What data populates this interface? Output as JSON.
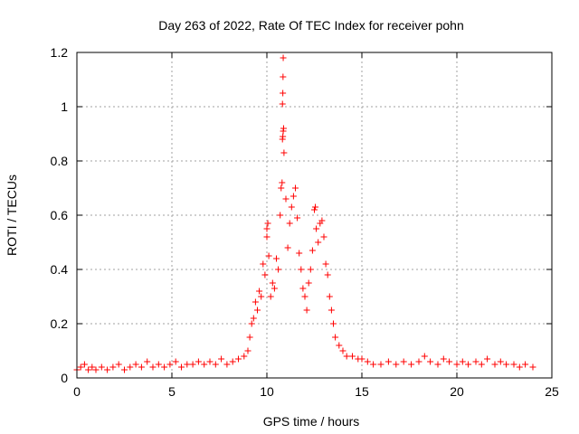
{
  "chart_data": {
    "type": "scatter",
    "title": "Day 263 of 2022, Rate Of TEC Index for receiver pohn",
    "xlabel": "GPS time / hours",
    "ylabel": "ROTI / TECUs",
    "xlim": [
      0,
      25
    ],
    "ylim": [
      0,
      1.2
    ],
    "xticks": [
      0,
      5,
      10,
      15,
      20,
      25
    ],
    "xtick_labels": [
      "0",
      "5",
      "10",
      "15",
      "20",
      "25"
    ],
    "yticks": [
      0,
      0.2,
      0.4,
      0.6,
      0.8,
      1.0,
      1.2
    ],
    "ytick_labels": [
      "0",
      "0.2",
      "0.4",
      "0.6",
      "0.8",
      "1",
      "1.2"
    ],
    "grid": true,
    "marker": "+",
    "colors": {
      "series": "#ff0000",
      "grid": "#a0a0a0",
      "axes": "#000000"
    },
    "series": [
      {
        "name": "ROTI",
        "points": [
          [
            0.0,
            0.03
          ],
          [
            0.2,
            0.04
          ],
          [
            0.4,
            0.05
          ],
          [
            0.6,
            0.03
          ],
          [
            0.8,
            0.04
          ],
          [
            1.0,
            0.03
          ],
          [
            1.3,
            0.04
          ],
          [
            1.6,
            0.03
          ],
          [
            1.9,
            0.04
          ],
          [
            2.2,
            0.05
          ],
          [
            2.5,
            0.03
          ],
          [
            2.8,
            0.04
          ],
          [
            3.1,
            0.05
          ],
          [
            3.4,
            0.04
          ],
          [
            3.7,
            0.06
          ],
          [
            4.0,
            0.04
          ],
          [
            4.3,
            0.05
          ],
          [
            4.6,
            0.04
          ],
          [
            4.9,
            0.05
          ],
          [
            5.2,
            0.06
          ],
          [
            5.5,
            0.04
          ],
          [
            5.8,
            0.05
          ],
          [
            6.1,
            0.05
          ],
          [
            6.4,
            0.06
          ],
          [
            6.7,
            0.05
          ],
          [
            7.0,
            0.06
          ],
          [
            7.3,
            0.05
          ],
          [
            7.6,
            0.07
          ],
          [
            7.9,
            0.05
          ],
          [
            8.2,
            0.06
          ],
          [
            8.5,
            0.07
          ],
          [
            8.8,
            0.08
          ],
          [
            9.0,
            0.1
          ],
          [
            9.1,
            0.15
          ],
          [
            9.2,
            0.2
          ],
          [
            9.3,
            0.22
          ],
          [
            9.4,
            0.28
          ],
          [
            9.5,
            0.25
          ],
          [
            9.6,
            0.32
          ],
          [
            9.7,
            0.3
          ],
          [
            9.8,
            0.42
          ],
          [
            9.9,
            0.38
          ],
          [
            10.0,
            0.55
          ],
          [
            10.0,
            0.52
          ],
          [
            10.05,
            0.57
          ],
          [
            10.1,
            0.45
          ],
          [
            10.2,
            0.3
          ],
          [
            10.3,
            0.35
          ],
          [
            10.4,
            0.33
          ],
          [
            10.5,
            0.44
          ],
          [
            10.6,
            0.4
          ],
          [
            10.7,
            0.6
          ],
          [
            10.75,
            0.7
          ],
          [
            10.8,
            0.72
          ],
          [
            10.82,
            0.88
          ],
          [
            10.84,
            0.89
          ],
          [
            10.86,
            0.91
          ],
          [
            10.88,
            0.92
          ],
          [
            10.82,
            1.01
          ],
          [
            10.84,
            1.05
          ],
          [
            10.85,
            1.11
          ],
          [
            10.86,
            1.18
          ],
          [
            10.9,
            0.83
          ],
          [
            11.0,
            0.66
          ],
          [
            11.1,
            0.48
          ],
          [
            11.2,
            0.57
          ],
          [
            11.3,
            0.63
          ],
          [
            11.4,
            0.67
          ],
          [
            11.5,
            0.7
          ],
          [
            11.6,
            0.59
          ],
          [
            11.7,
            0.46
          ],
          [
            11.8,
            0.4
          ],
          [
            11.9,
            0.33
          ],
          [
            12.0,
            0.3
          ],
          [
            12.1,
            0.25
          ],
          [
            12.2,
            0.35
          ],
          [
            12.3,
            0.4
          ],
          [
            12.4,
            0.47
          ],
          [
            12.5,
            0.62
          ],
          [
            12.55,
            0.63
          ],
          [
            12.6,
            0.55
          ],
          [
            12.7,
            0.5
          ],
          [
            12.8,
            0.57
          ],
          [
            12.9,
            0.58
          ],
          [
            13.0,
            0.52
          ],
          [
            13.1,
            0.42
          ],
          [
            13.2,
            0.38
          ],
          [
            13.3,
            0.3
          ],
          [
            13.4,
            0.25
          ],
          [
            13.5,
            0.2
          ],
          [
            13.6,
            0.15
          ],
          [
            13.8,
            0.12
          ],
          [
            14.0,
            0.1
          ],
          [
            14.2,
            0.08
          ],
          [
            14.5,
            0.08
          ],
          [
            14.8,
            0.07
          ],
          [
            15.0,
            0.07
          ],
          [
            15.3,
            0.06
          ],
          [
            15.6,
            0.05
          ],
          [
            16.0,
            0.05
          ],
          [
            16.4,
            0.06
          ],
          [
            16.8,
            0.05
          ],
          [
            17.2,
            0.06
          ],
          [
            17.6,
            0.05
          ],
          [
            18.0,
            0.06
          ],
          [
            18.3,
            0.08
          ],
          [
            18.6,
            0.06
          ],
          [
            19.0,
            0.05
          ],
          [
            19.3,
            0.07
          ],
          [
            19.6,
            0.06
          ],
          [
            20.0,
            0.05
          ],
          [
            20.3,
            0.06
          ],
          [
            20.6,
            0.05
          ],
          [
            21.0,
            0.06
          ],
          [
            21.3,
            0.05
          ],
          [
            21.6,
            0.07
          ],
          [
            22.0,
            0.05
          ],
          [
            22.3,
            0.06
          ],
          [
            22.6,
            0.05
          ],
          [
            23.0,
            0.05
          ],
          [
            23.3,
            0.04
          ],
          [
            23.6,
            0.05
          ],
          [
            24.0,
            0.04
          ]
        ]
      }
    ]
  }
}
